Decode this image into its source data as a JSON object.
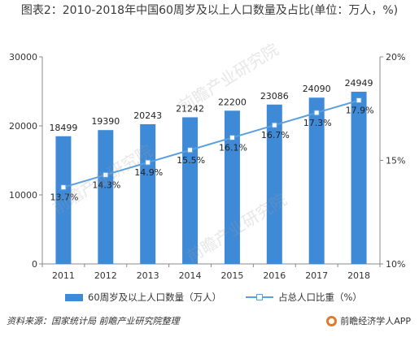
{
  "title": "图表2：2010-2018年中国60周岁及以上人口数量及占比(单位：万人，%)",
  "watermark": "前瞻产业研究院",
  "source": "资料来源：国家统计局 前瞻产业研究院整理",
  "brand": "前瞻经济学人APP",
  "colors": {
    "bar": "#3f8ad6",
    "line": "#5aa0e0",
    "marker_fill": "#ffffff"
  },
  "chart_data": {
    "type": "bar",
    "categories": [
      "2011",
      "2012",
      "2013",
      "2014",
      "2015",
      "2016",
      "2017",
      "2018"
    ],
    "series": [
      {
        "name": "60周岁及以上人口数量（万人）",
        "type": "bar",
        "axis": "left",
        "values": [
          18499,
          19390,
          20243,
          21242,
          22200,
          23086,
          24090,
          24949
        ]
      },
      {
        "name": "占总人口比重（%）",
        "type": "line",
        "axis": "right",
        "values": [
          13.7,
          14.3,
          14.9,
          15.5,
          16.1,
          16.7,
          17.3,
          17.9
        ]
      }
    ],
    "data_labels_left": [
      "18499",
      "19390",
      "20243",
      "21242",
      "22200",
      "23086",
      "24090",
      "24949"
    ],
    "data_labels_right": [
      "13.7%",
      "14.3%",
      "14.9%",
      "15.5%",
      "16.1%",
      "16.7%",
      "17.3%",
      "17.9%"
    ],
    "y_left": {
      "min": 0,
      "max": 30000,
      "ticks": [
        0,
        10000,
        20000,
        30000
      ]
    },
    "y_right": {
      "min": 10,
      "max": 20,
      "ticks": [
        10,
        15,
        20
      ],
      "tick_labels": [
        "10%",
        "15%",
        "20%"
      ]
    },
    "grid": false,
    "legend_position": "bottom"
  }
}
